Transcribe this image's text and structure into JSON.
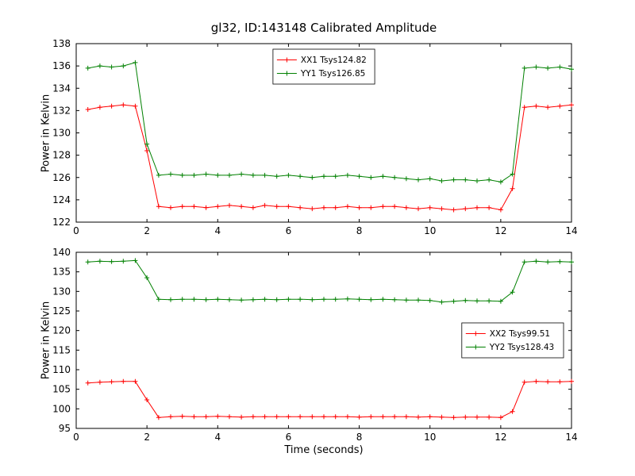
{
  "title": "gl32, ID:143148 Calibrated Amplitude",
  "chart_data": [
    {
      "type": "line",
      "ylabel": "Power in Kelvin",
      "xlabel": "",
      "xlim": [
        0,
        14
      ],
      "ylim": [
        122,
        138
      ],
      "xtick_step": 2,
      "ytick_step": 2,
      "legend_position": "top-center",
      "grid": false,
      "x": [
        0.33,
        0.67,
        1.0,
        1.33,
        1.67,
        2.0,
        2.33,
        2.67,
        3.0,
        3.33,
        3.67,
        4.0,
        4.33,
        4.67,
        5.0,
        5.33,
        5.67,
        6.0,
        6.33,
        6.67,
        7.0,
        7.33,
        7.67,
        8.0,
        8.33,
        8.67,
        9.0,
        9.33,
        9.67,
        10.0,
        10.33,
        10.67,
        11.0,
        11.33,
        11.67,
        12.0,
        12.33,
        12.67,
        13.0,
        13.33,
        13.67,
        14.0
      ],
      "series": [
        {
          "name": "XX1 Tsys124.82",
          "color": "#ff0000",
          "values": [
            132.1,
            132.3,
            132.4,
            132.5,
            132.4,
            128.4,
            123.4,
            123.3,
            123.4,
            123.4,
            123.3,
            123.4,
            123.5,
            123.4,
            123.3,
            123.5,
            123.4,
            123.4,
            123.3,
            123.2,
            123.3,
            123.3,
            123.4,
            123.3,
            123.3,
            123.4,
            123.4,
            123.3,
            123.2,
            123.3,
            123.2,
            123.1,
            123.2,
            123.3,
            123.3,
            123.1,
            125.0,
            132.3,
            132.4,
            132.3,
            132.4,
            132.5
          ]
        },
        {
          "name": "YY1 Tsys126.85",
          "color": "#008000",
          "values": [
            135.8,
            136.0,
            135.9,
            136.0,
            136.3,
            129.0,
            126.2,
            126.3,
            126.2,
            126.2,
            126.3,
            126.2,
            126.2,
            126.3,
            126.2,
            126.2,
            126.1,
            126.2,
            126.1,
            126.0,
            126.1,
            126.1,
            126.2,
            126.1,
            126.0,
            126.1,
            126.0,
            125.9,
            125.8,
            125.9,
            125.7,
            125.8,
            125.8,
            125.7,
            125.8,
            125.6,
            126.3,
            135.8,
            135.9,
            135.8,
            135.9,
            135.7
          ]
        }
      ]
    },
    {
      "type": "line",
      "ylabel": "Power in Kelvin",
      "xlabel": "Time (seconds)",
      "xlim": [
        0,
        14
      ],
      "ylim": [
        95,
        140
      ],
      "xtick_step": 2,
      "ytick_step": 5,
      "legend_position": "right-middle",
      "grid": false,
      "x": [
        0.33,
        0.67,
        1.0,
        1.33,
        1.67,
        2.0,
        2.33,
        2.67,
        3.0,
        3.33,
        3.67,
        4.0,
        4.33,
        4.67,
        5.0,
        5.33,
        5.67,
        6.0,
        6.33,
        6.67,
        7.0,
        7.33,
        7.67,
        8.0,
        8.33,
        8.67,
        9.0,
        9.33,
        9.67,
        10.0,
        10.33,
        10.67,
        11.0,
        11.33,
        11.67,
        12.0,
        12.33,
        12.67,
        13.0,
        13.33,
        13.67,
        14.0
      ],
      "series": [
        {
          "name": "XX2 Tsys99.51",
          "color": "#ff0000",
          "values": [
            106.6,
            106.8,
            106.9,
            107.0,
            107.0,
            102.3,
            97.8,
            98.0,
            98.1,
            98.0,
            98.0,
            98.1,
            98.0,
            97.9,
            98.0,
            98.0,
            98.0,
            98.0,
            98.0,
            98.0,
            98.0,
            98.0,
            98.0,
            97.9,
            98.0,
            98.0,
            98.0,
            98.0,
            97.9,
            98.0,
            97.9,
            97.8,
            97.9,
            97.9,
            97.9,
            97.8,
            99.3,
            106.8,
            107.0,
            106.9,
            106.9,
            107.0
          ]
        },
        {
          "name": "YY2 Tsys128.43",
          "color": "#008000",
          "values": [
            137.5,
            137.7,
            137.6,
            137.7,
            137.9,
            133.5,
            128.0,
            127.9,
            128.0,
            128.0,
            127.9,
            128.0,
            127.9,
            127.8,
            127.9,
            128.0,
            127.9,
            128.0,
            128.0,
            127.9,
            128.0,
            128.0,
            128.1,
            128.0,
            127.9,
            128.0,
            127.9,
            127.8,
            127.8,
            127.7,
            127.3,
            127.5,
            127.7,
            127.6,
            127.6,
            127.5,
            129.8,
            137.5,
            137.7,
            137.5,
            137.6,
            137.5
          ]
        }
      ]
    }
  ]
}
